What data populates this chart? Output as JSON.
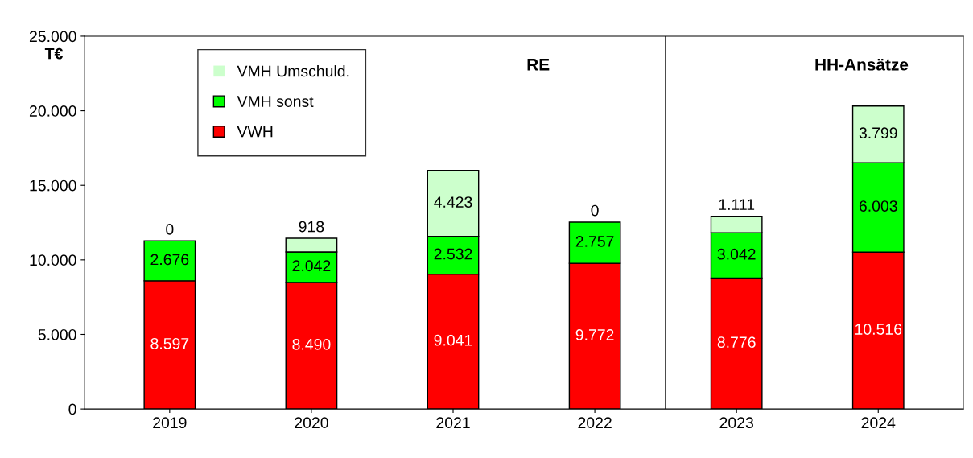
{
  "chart_data": {
    "type": "bar",
    "stacked": true,
    "ylabel": "T€",
    "categories": [
      "2019",
      "2020",
      "2021",
      "2022",
      "2023",
      "2024"
    ],
    "series": [
      {
        "name": "VWH",
        "color": "#ff0000",
        "values": [
          8597,
          8490,
          9041,
          9772,
          8776,
          10516
        ],
        "value_labels": [
          "8.597",
          "8.490",
          "9.041",
          "9.772",
          "8.776",
          "10.516"
        ]
      },
      {
        "name": "VMH sonst",
        "color": "#00ff00",
        "values": [
          2676,
          2042,
          2532,
          2757,
          3042,
          6003
        ],
        "value_labels": [
          "2.676",
          "2.042",
          "2.532",
          "2.757",
          "3.042",
          "6.003"
        ]
      },
      {
        "name": "VMH Umschuld.",
        "color": "#ccffcc",
        "values": [
          0,
          918,
          4423,
          0,
          1111,
          3799
        ],
        "value_labels": [
          "0",
          "918",
          "4.423",
          "0",
          "1.111",
          "3.799"
        ]
      }
    ],
    "ylim": [
      0,
      25000
    ],
    "yticks": [
      {
        "value": 0,
        "label": "0"
      },
      {
        "value": 5000,
        "label": "5.000"
      },
      {
        "value": 10000,
        "label": "10.000"
      },
      {
        "value": 15000,
        "label": "15.000"
      },
      {
        "value": 20000,
        "label": "20.000"
      },
      {
        "value": 25000,
        "label": "25.000"
      }
    ],
    "annotations": [
      "RE",
      "HH-Ansätze"
    ],
    "legend": "top left",
    "grid": false
  }
}
